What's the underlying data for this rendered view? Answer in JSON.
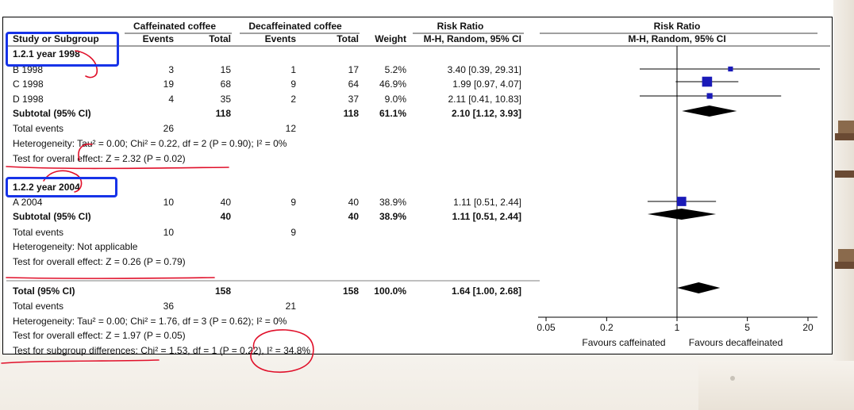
{
  "table": {
    "header_groups": {
      "experimental": "Caffeinated coffee",
      "control": "Decaffeinated coffee",
      "effect": "Risk Ratio",
      "plot": "Risk Ratio"
    },
    "columns": {
      "study": "Study or Subgroup",
      "e_events": "Events",
      "e_total": "Total",
      "c_events": "Events",
      "c_total": "Total",
      "weight": "Weight",
      "method": "M-H, Random, 95% CI",
      "plot_method": "M-H, Random, 95% CI"
    },
    "subgroups": [
      {
        "label": "1.2.1 year 1998",
        "studies": [
          {
            "name": "B 1998",
            "e_events": "3",
            "e_total": "15",
            "c_events": "1",
            "c_total": "17",
            "weight": "5.2%",
            "ci_text": "3.40 [0.39, 29.31]"
          },
          {
            "name": "C 1998",
            "e_events": "19",
            "e_total": "68",
            "c_events": "9",
            "c_total": "64",
            "weight": "46.9%",
            "ci_text": "1.99 [0.97, 4.07]"
          },
          {
            "name": "D 1998",
            "e_events": "4",
            "e_total": "35",
            "c_events": "2",
            "c_total": "37",
            "weight": "9.0%",
            "ci_text": "2.11 [0.41, 10.83]"
          }
        ],
        "subtotal": {
          "label": "Subtotal (95% CI)",
          "e_total": "118",
          "c_total": "118",
          "weight": "61.1%",
          "ci_text": "2.10 [1.12, 3.93]"
        },
        "total_events": {
          "label": "Total events",
          "e": "26",
          "c": "12"
        },
        "heterogeneity": "Heterogeneity: Tau² = 0.00; Chi² = 0.22, df = 2 (P = 0.90); I² = 0%",
        "overall": "Test for overall effect: Z = 2.32 (P = 0.02)"
      },
      {
        "label": "1.2.2 year 2004",
        "studies": [
          {
            "name": "A 2004",
            "e_events": "10",
            "e_total": "40",
            "c_events": "9",
            "c_total": "40",
            "weight": "38.9%",
            "ci_text": "1.11 [0.51, 2.44]"
          }
        ],
        "subtotal": {
          "label": "Subtotal (95% CI)",
          "e_total": "40",
          "c_total": "40",
          "weight": "38.9%",
          "ci_text": "1.11 [0.51, 2.44]"
        },
        "total_events": {
          "label": "Total events",
          "e": "10",
          "c": "9"
        },
        "heterogeneity": "Heterogeneity: Not applicable",
        "overall": "Test for overall effect: Z = 0.26 (P = 0.79)"
      }
    ],
    "total": {
      "label": "Total (95% CI)",
      "e_total": "158",
      "c_total": "158",
      "weight": "100.0%",
      "ci_text": "1.64 [1.00, 2.68]"
    },
    "total_events": {
      "label": "Total events",
      "e": "36",
      "c": "21"
    },
    "heterogeneity": "Heterogeneity: Tau² = 0.00; Chi² = 1.76, df = 3 (P = 0.62); I² = 0%",
    "overall": "Test for overall effect: Z = 1.97 (P = 0.05)",
    "subgroup_diff": "Test for subgroup differences: Chi² = 1.53, df = 1 (P = 0.22), I² = 34.8%"
  },
  "chart_data": {
    "type": "forest",
    "x_scale": "log",
    "xlim": [
      0.05,
      20
    ],
    "ticks": [
      0.05,
      0.2,
      1,
      5,
      20
    ],
    "tick_labels": [
      "0.05",
      "0.2",
      "1",
      "5",
      "20"
    ],
    "xlabel_left": "Favours caffeinated",
    "xlabel_right": "Favours decaffeinated",
    "studies": [
      {
        "name": "B 1998",
        "rr": 3.4,
        "lo": 0.39,
        "hi": 29.31,
        "weight": 5.2
      },
      {
        "name": "C 1998",
        "rr": 1.99,
        "lo": 0.97,
        "hi": 4.07,
        "weight": 46.9
      },
      {
        "name": "D 1998",
        "rr": 2.11,
        "lo": 0.41,
        "hi": 10.83,
        "weight": 9.0
      },
      {
        "name": "A 2004",
        "rr": 1.11,
        "lo": 0.51,
        "hi": 2.44,
        "weight": 38.9
      }
    ],
    "diamonds": [
      {
        "name": "Subtotal 1.2.1",
        "rr": 2.1,
        "lo": 1.12,
        "hi": 3.93
      },
      {
        "name": "Subtotal 1.2.2",
        "rr": 1.11,
        "lo": 0.51,
        "hi": 2.44
      },
      {
        "name": "Total",
        "rr": 1.64,
        "lo": 1.0,
        "hi": 2.68
      }
    ],
    "colors": {
      "marker": "#1a1ab8",
      "diamond": "#000000",
      "annotation_box": "#1733e8",
      "annotation_ink": "#e0102a"
    }
  }
}
